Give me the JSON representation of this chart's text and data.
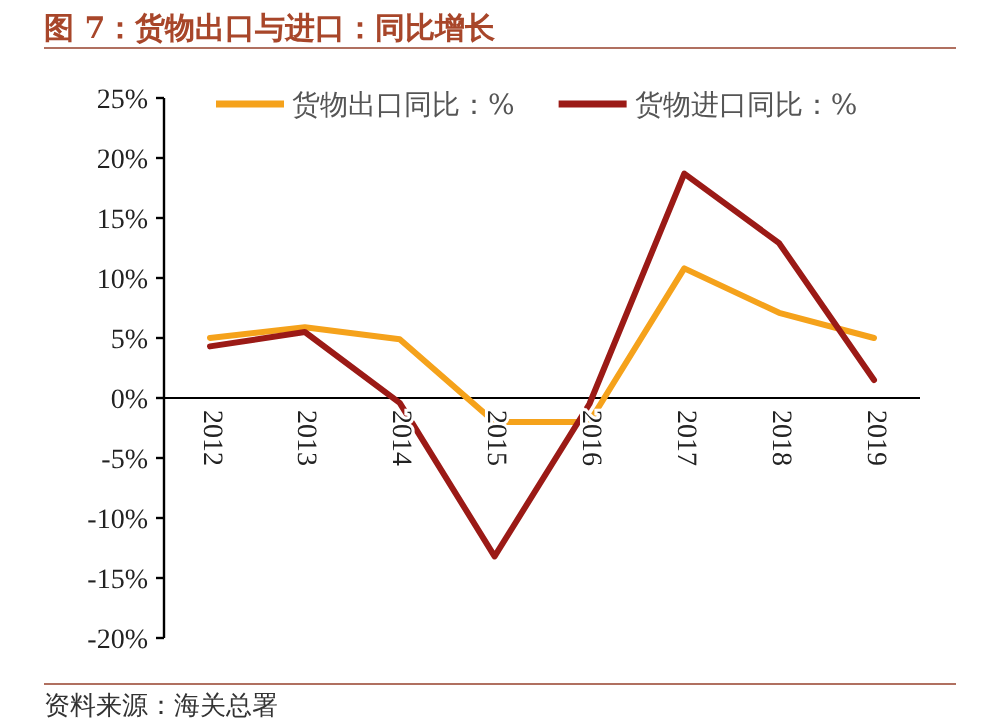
{
  "chart_data": {
    "type": "line",
    "title": "图 7：货物出口与进口：同比增长",
    "annotations": [
      "资料来源：海关总署"
    ],
    "categories": [
      "2012",
      "2013",
      "2014",
      "2015",
      "2016",
      "2017",
      "2018",
      "2019"
    ],
    "series": [
      {
        "name": "货物出口同比：%",
        "color": "#f5a21b",
        "values": [
          5.0,
          5.9,
          4.9,
          -2.0,
          -2.0,
          10.8,
          7.1,
          5.0
        ]
      },
      {
        "name": "货物进口同比：%",
        "color": "#9b1a16",
        "values": [
          4.3,
          5.5,
          -0.4,
          -13.2,
          -0.5,
          18.7,
          12.9,
          1.5
        ]
      }
    ],
    "ylim": [
      -20,
      25
    ],
    "yticks": [
      {
        "value": -20,
        "label": "-20%"
      },
      {
        "value": -15,
        "label": "-15%"
      },
      {
        "value": -10,
        "label": "-10%"
      },
      {
        "value": -5,
        "label": "-5%"
      },
      {
        "value": 0,
        "label": "0%"
      },
      {
        "value": 5,
        "label": "5%"
      },
      {
        "value": 10,
        "label": "10%"
      },
      {
        "value": 15,
        "label": "15%"
      },
      {
        "value": 20,
        "label": "20%"
      },
      {
        "value": 25,
        "label": "25%"
      }
    ],
    "legend": "top",
    "marker": "none",
    "line_style": "solid"
  }
}
